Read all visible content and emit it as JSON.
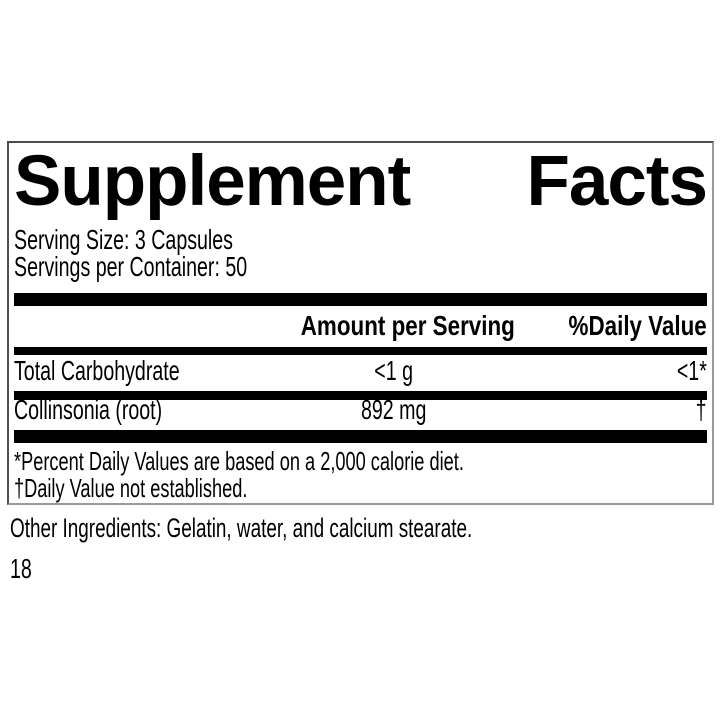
{
  "panel": {
    "title_words": [
      "Supplement",
      "Facts"
    ],
    "serving_size": "Serving Size: 3 Capsules",
    "servings_per_container": "Servings per Container: 50",
    "columns": {
      "amount": "Amount per Serving",
      "daily_value": "%Daily Value"
    },
    "rows": [
      {
        "name": "Total Carbohydrate",
        "amount": "<1 g",
        "daily_value": "<1*"
      },
      {
        "name": "Collinsonia (root)",
        "amount": "892 mg",
        "daily_value": "†"
      }
    ],
    "footnotes": [
      "*Percent Daily Values are based on a 2,000 calorie diet.",
      "†Daily Value not established."
    ]
  },
  "other_ingredients": "Other Ingredients: Gelatin, water, and calcium stearate.",
  "page_number": "18",
  "colors": {
    "text": "#000000",
    "divider": "#000000",
    "panel_border_dark": "#4d4d4d",
    "panel_border_light": "#9a9a9a",
    "background": "#ffffff"
  }
}
